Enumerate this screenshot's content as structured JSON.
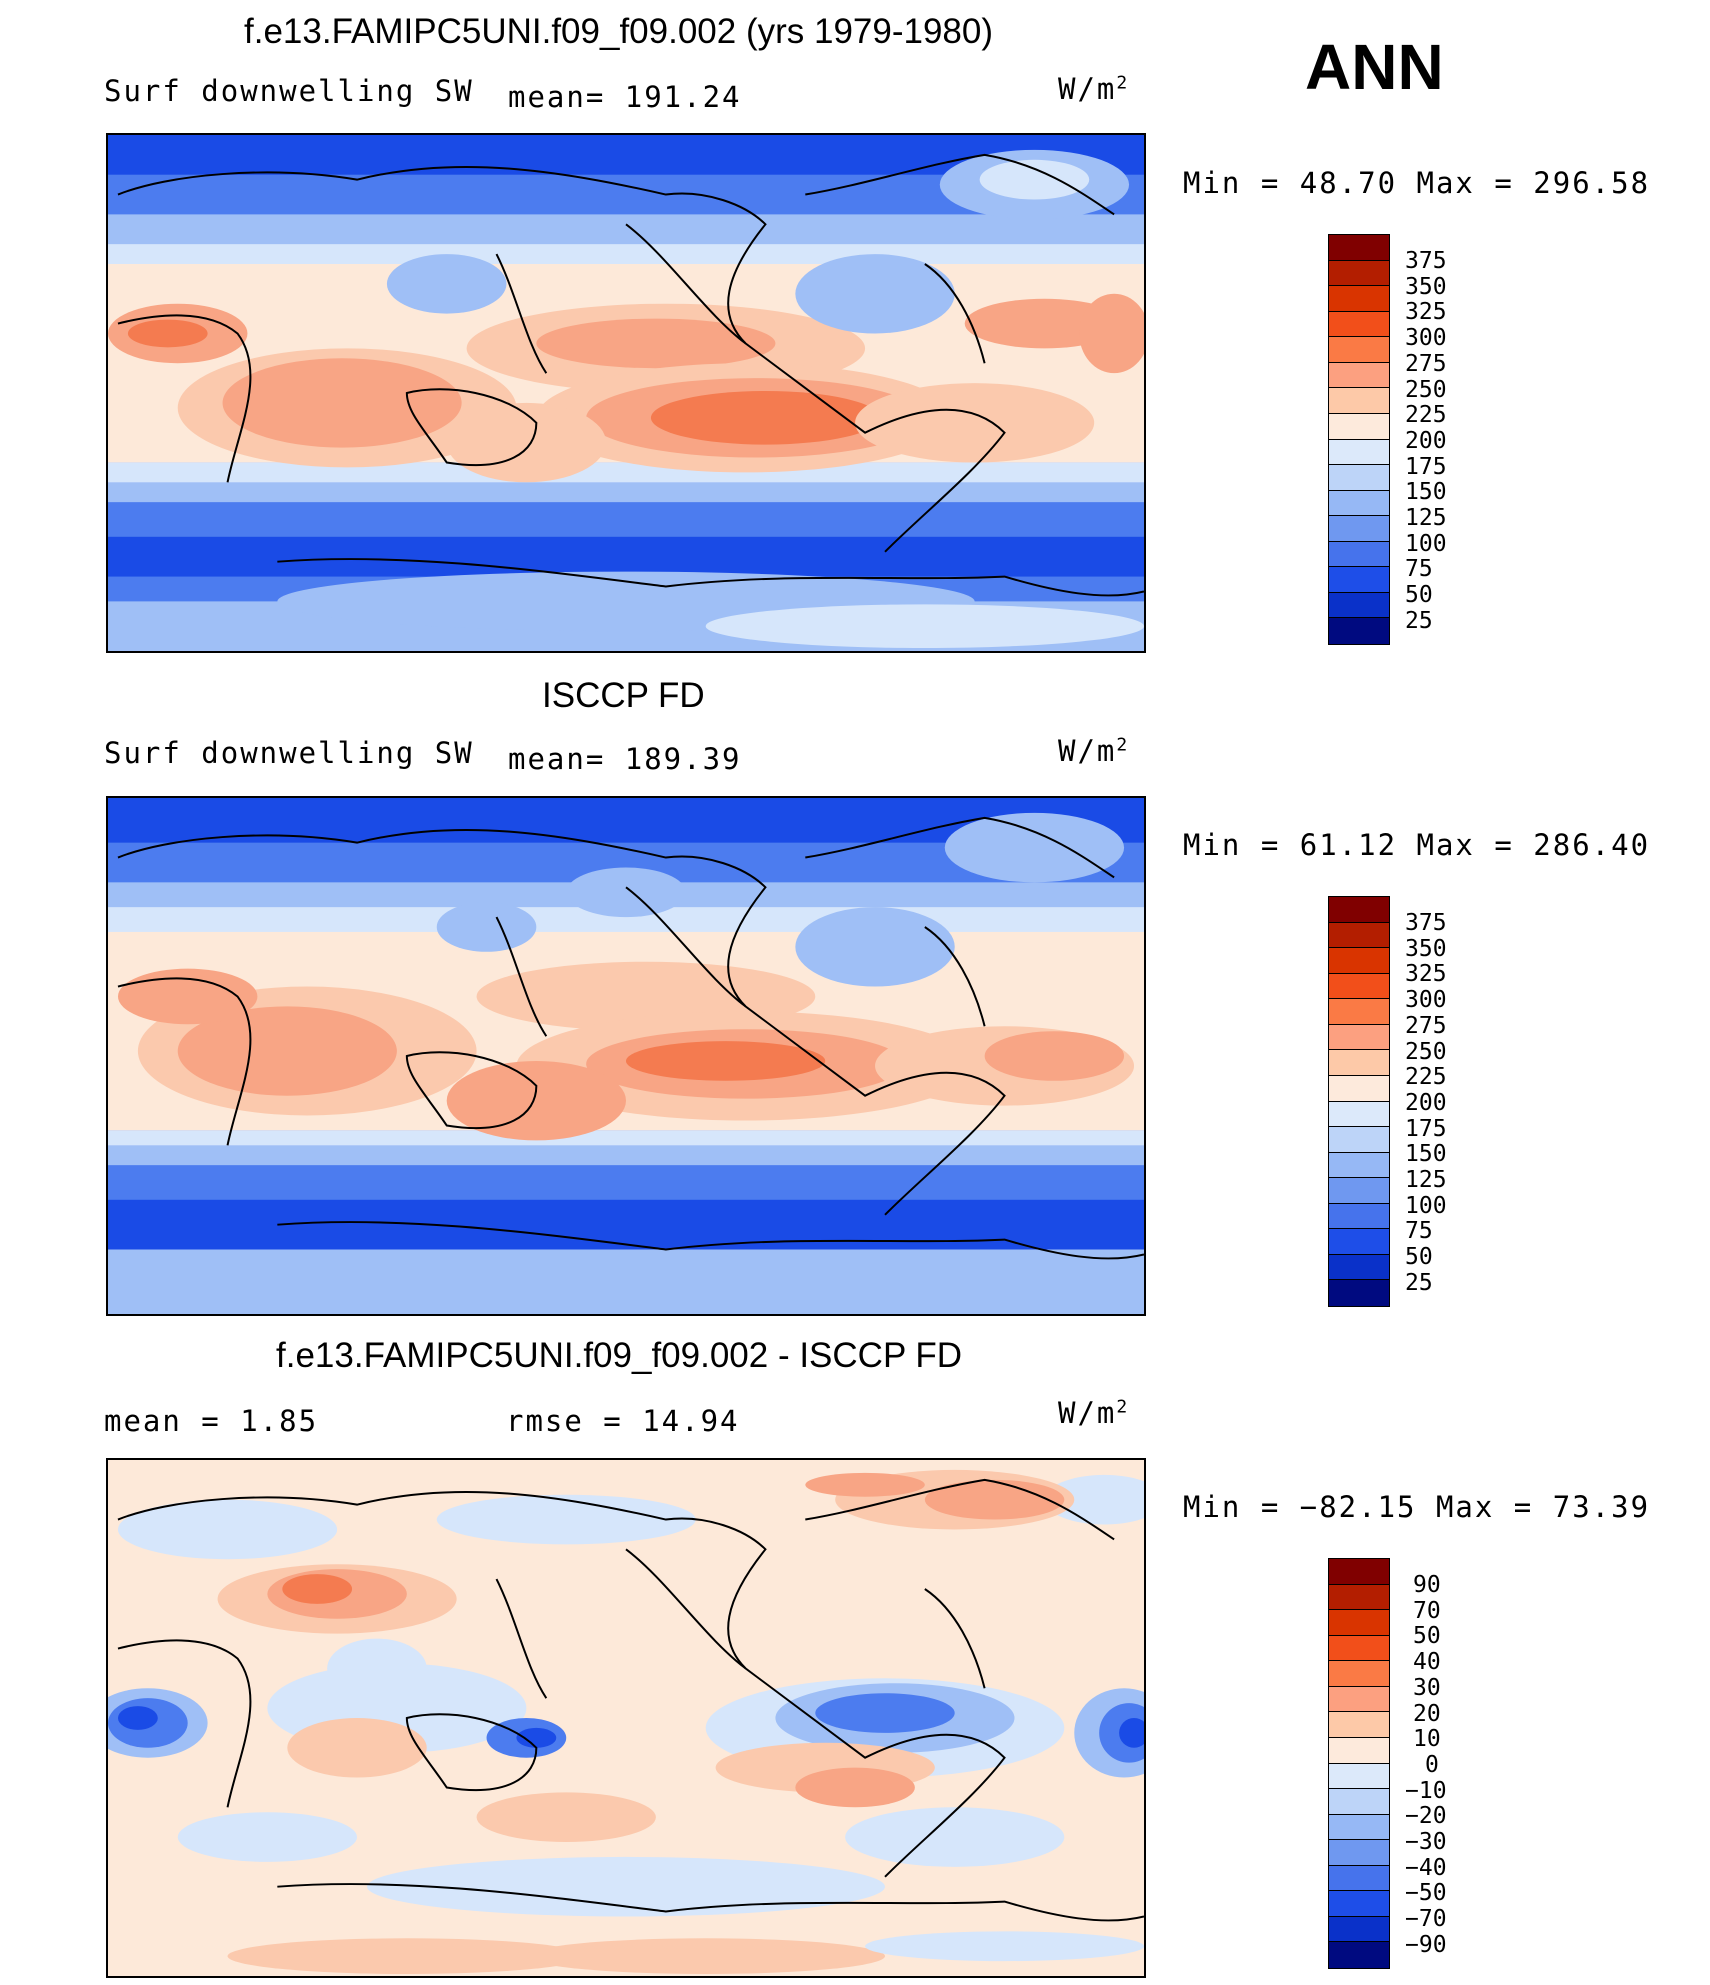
{
  "season": "ANN",
  "panels": [
    {
      "title": "f.e13.FAMIPC5UNI.f09_f09.002 (yrs 1979-1980)",
      "left_label": "Surf downwelling SW",
      "mid_label": "mean= 191.24",
      "units": "W/m",
      "units_sup": "2",
      "minmax": "Min =   48.70 Max = 296.58",
      "colorbar_ticks": [
        "375",
        "350",
        "325",
        "300",
        "275",
        "250",
        "225",
        "200",
        "175",
        "150",
        "125",
        "100",
        "75",
        "50",
        "25"
      ]
    },
    {
      "title": "ISCCP FD",
      "left_label": "Surf downwelling SW",
      "mid_label": "mean= 189.39",
      "units": "W/m",
      "units_sup": "2",
      "minmax": "Min =   61.12 Max = 286.40",
      "colorbar_ticks": [
        "375",
        "350",
        "325",
        "300",
        "275",
        "250",
        "225",
        "200",
        "175",
        "150",
        "125",
        "100",
        "75",
        "50",
        "25"
      ]
    },
    {
      "title": "f.e13.FAMIPC5UNI.f09_f09.002 - ISCCP FD",
      "left_label": "mean =    1.85",
      "mid_label": "rmse =   14.94",
      "units": "W/m",
      "units_sup": "2",
      "minmax": "Min = −82.15 Max =   73.39",
      "colorbar_ticks": [
        "90",
        "70",
        "50",
        "40",
        "30",
        "20",
        "10",
        "0",
        "−10",
        "−20",
        "−30",
        "−40",
        "−50",
        "−70",
        "−90"
      ]
    }
  ],
  "colorbar_colors": [
    "#800000",
    "#b31e00",
    "#d93400",
    "#f24f1a",
    "#fa7a45",
    "#fca080",
    "#fdc9a8",
    "#fdeadc",
    "#dce9fa",
    "#bdd4f8",
    "#96b8f5",
    "#6f98f0",
    "#4673ec",
    "#1e4ee8",
    "#0a31c9",
    "#001fa0",
    "#000a80"
  ],
  "map_palette": {
    "deep_blue": "#1a4be6",
    "mid_blue": "#4c7cef",
    "light_blue": "#9fbff6",
    "pale_blue": "#d6e6fb",
    "cream": "#fde9d9",
    "peach": "#fbc9ad",
    "salmon": "#f8a585",
    "orange": "#f47b50",
    "red_orange": "#e8562a"
  },
  "chart_data": {
    "type": "heatmap",
    "field": "Surface downwelling shortwave radiation",
    "season": "ANN",
    "maps": [
      {
        "name": "f.e13.FAMIPC5UNI.f09_f09.002 (yrs 1979-1980)",
        "mean": 191.24,
        "min": 48.7,
        "max": 296.58,
        "units": "W/m2",
        "contour_levels": [
          25,
          50,
          75,
          100,
          125,
          150,
          175,
          200,
          225,
          250,
          275,
          300,
          325,
          350,
          375
        ]
      },
      {
        "name": "ISCCP FD",
        "mean": 189.39,
        "min": 61.12,
        "max": 286.4,
        "units": "W/m2",
        "contour_levels": [
          25,
          50,
          75,
          100,
          125,
          150,
          175,
          200,
          225,
          250,
          275,
          300,
          325,
          350,
          375
        ]
      },
      {
        "name": "f.e13.FAMIPC5UNI.f09_f09.002 - ISCCP FD",
        "mean": 1.85,
        "rmse": 14.94,
        "min": -82.15,
        "max": 73.39,
        "units": "W/m2",
        "contour_levels": [
          -90,
          -70,
          -50,
          -40,
          -30,
          -20,
          -10,
          0,
          10,
          20,
          30,
          40,
          50,
          70,
          90
        ]
      }
    ]
  }
}
